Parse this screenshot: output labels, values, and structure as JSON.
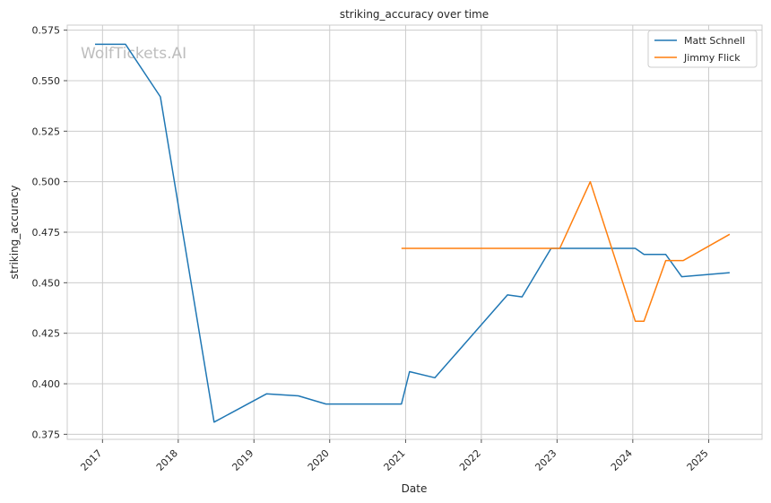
{
  "watermark": "WolfTickets.AI",
  "chart_data": {
    "type": "line",
    "title": "striking_accuracy over time",
    "xlabel": "Date",
    "ylabel": "striking_accuracy",
    "x_axis_type": "date",
    "xlim": [
      "2016-07-15",
      "2025-09-15"
    ],
    "ylim": [
      0.3725,
      0.5775
    ],
    "x_ticks": [
      {
        "date": "2017-01-01",
        "label": "2017"
      },
      {
        "date": "2018-01-01",
        "label": "2018"
      },
      {
        "date": "2019-01-01",
        "label": "2019"
      },
      {
        "date": "2020-01-01",
        "label": "2020"
      },
      {
        "date": "2021-01-01",
        "label": "2021"
      },
      {
        "date": "2022-01-01",
        "label": "2022"
      },
      {
        "date": "2023-01-01",
        "label": "2023"
      },
      {
        "date": "2024-01-01",
        "label": "2024"
      },
      {
        "date": "2025-01-01",
        "label": "2025"
      }
    ],
    "y_ticks": [
      0.375,
      0.4,
      0.425,
      0.45,
      0.475,
      0.5,
      0.525,
      0.55,
      0.575
    ],
    "y_tick_labels": [
      "0.375",
      "0.400",
      "0.425",
      "0.450",
      "0.475",
      "0.500",
      "0.525",
      "0.550",
      "0.575"
    ],
    "grid": true,
    "legend_position": "top-right",
    "series": [
      {
        "name": "Matt Schnell",
        "color": "#1f77b4",
        "points": [
          [
            "2016-11-26",
            0.568
          ],
          [
            "2017-04-22",
            0.568
          ],
          [
            "2017-10-07",
            0.542
          ],
          [
            "2018-06-23",
            0.381
          ],
          [
            "2019-03-02",
            0.395
          ],
          [
            "2019-08-03",
            0.394
          ],
          [
            "2019-12-14",
            0.39
          ],
          [
            "2020-12-12",
            0.39
          ],
          [
            "2021-01-20",
            0.406
          ],
          [
            "2021-05-22",
            0.403
          ],
          [
            "2022-05-07",
            0.444
          ],
          [
            "2022-07-16",
            0.443
          ],
          [
            "2022-12-03",
            0.467
          ],
          [
            "2023-12-16",
            0.467
          ],
          [
            "2024-01-13",
            0.467
          ],
          [
            "2024-02-24",
            0.464
          ],
          [
            "2024-06-08",
            0.464
          ],
          [
            "2024-08-24",
            0.453
          ],
          [
            "2025-04-12",
            0.455
          ]
        ]
      },
      {
        "name": "Jimmy Flick",
        "color": "#ff7f0e",
        "points": [
          [
            "2020-12-12",
            0.467
          ],
          [
            "2023-01-14",
            0.467
          ],
          [
            "2023-06-10",
            0.5
          ],
          [
            "2024-01-13",
            0.431
          ],
          [
            "2024-02-24",
            0.431
          ],
          [
            "2024-06-08",
            0.461
          ],
          [
            "2024-08-31",
            0.461
          ],
          [
            "2025-04-12",
            0.474
          ]
        ]
      }
    ]
  }
}
